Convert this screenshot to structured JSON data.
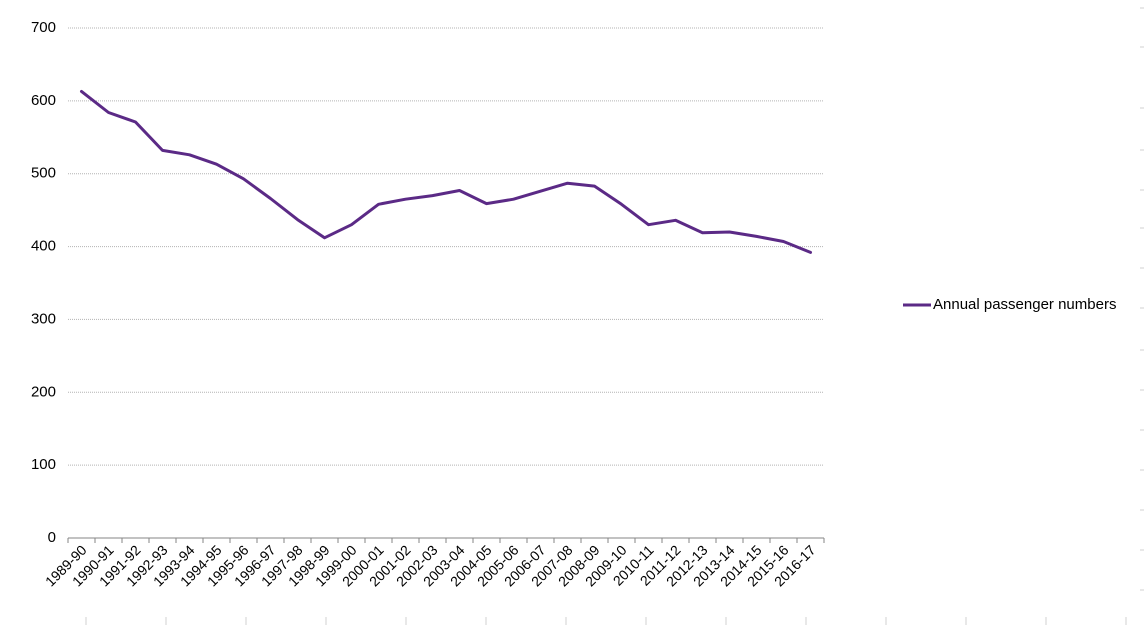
{
  "chart_data": {
    "type": "line",
    "title": "",
    "xlabel": "",
    "ylabel": "",
    "ylim": [
      0,
      700
    ],
    "yticks": [
      0,
      100,
      200,
      300,
      400,
      500,
      600,
      700
    ],
    "grid": true,
    "legend_position": "right",
    "categories": [
      "1989-90",
      "1990-91",
      "1991-92",
      "1992-93",
      "1993-94",
      "1994-95",
      "1995-96",
      "1996-97",
      "1997-98",
      "1998-99",
      "1999-00",
      "2000-01",
      "2001-02",
      "2002-03",
      "2003-04",
      "2004-05",
      "2005-06",
      "2006-07",
      "2007-08",
      "2008-09",
      "2009-10",
      "2010-11",
      "2011-12",
      "2012-13",
      "2013-14",
      "2014-15",
      "2015-16",
      "2016-17"
    ],
    "series": [
      {
        "name": "Annual passenger numbers",
        "color": "#5b2a86",
        "values": [
          613,
          584,
          571,
          532,
          526,
          513,
          493,
          466,
          437,
          412,
          430,
          458,
          465,
          470,
          477,
          459,
          465,
          476,
          487,
          483,
          458,
          430,
          436,
          419,
          420,
          414,
          407,
          392
        ]
      }
    ]
  }
}
